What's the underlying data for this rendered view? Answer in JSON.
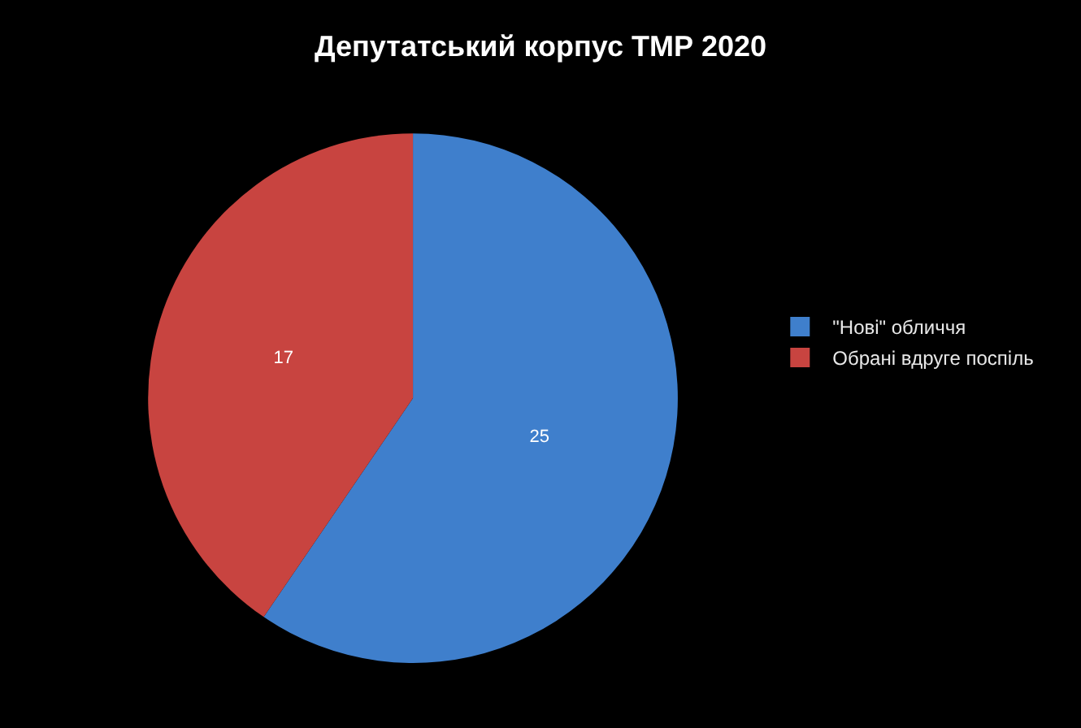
{
  "chart_data": {
    "type": "pie",
    "title": "Депутатський корпус ТМР 2020",
    "categories": [
      "\"Нові\" обличчя",
      "Обрані вдруге поспіль"
    ],
    "values": [
      25,
      17
    ],
    "colors": [
      "#3f7fcc",
      "#c84440"
    ],
    "data_labels": true,
    "legend": "right"
  }
}
